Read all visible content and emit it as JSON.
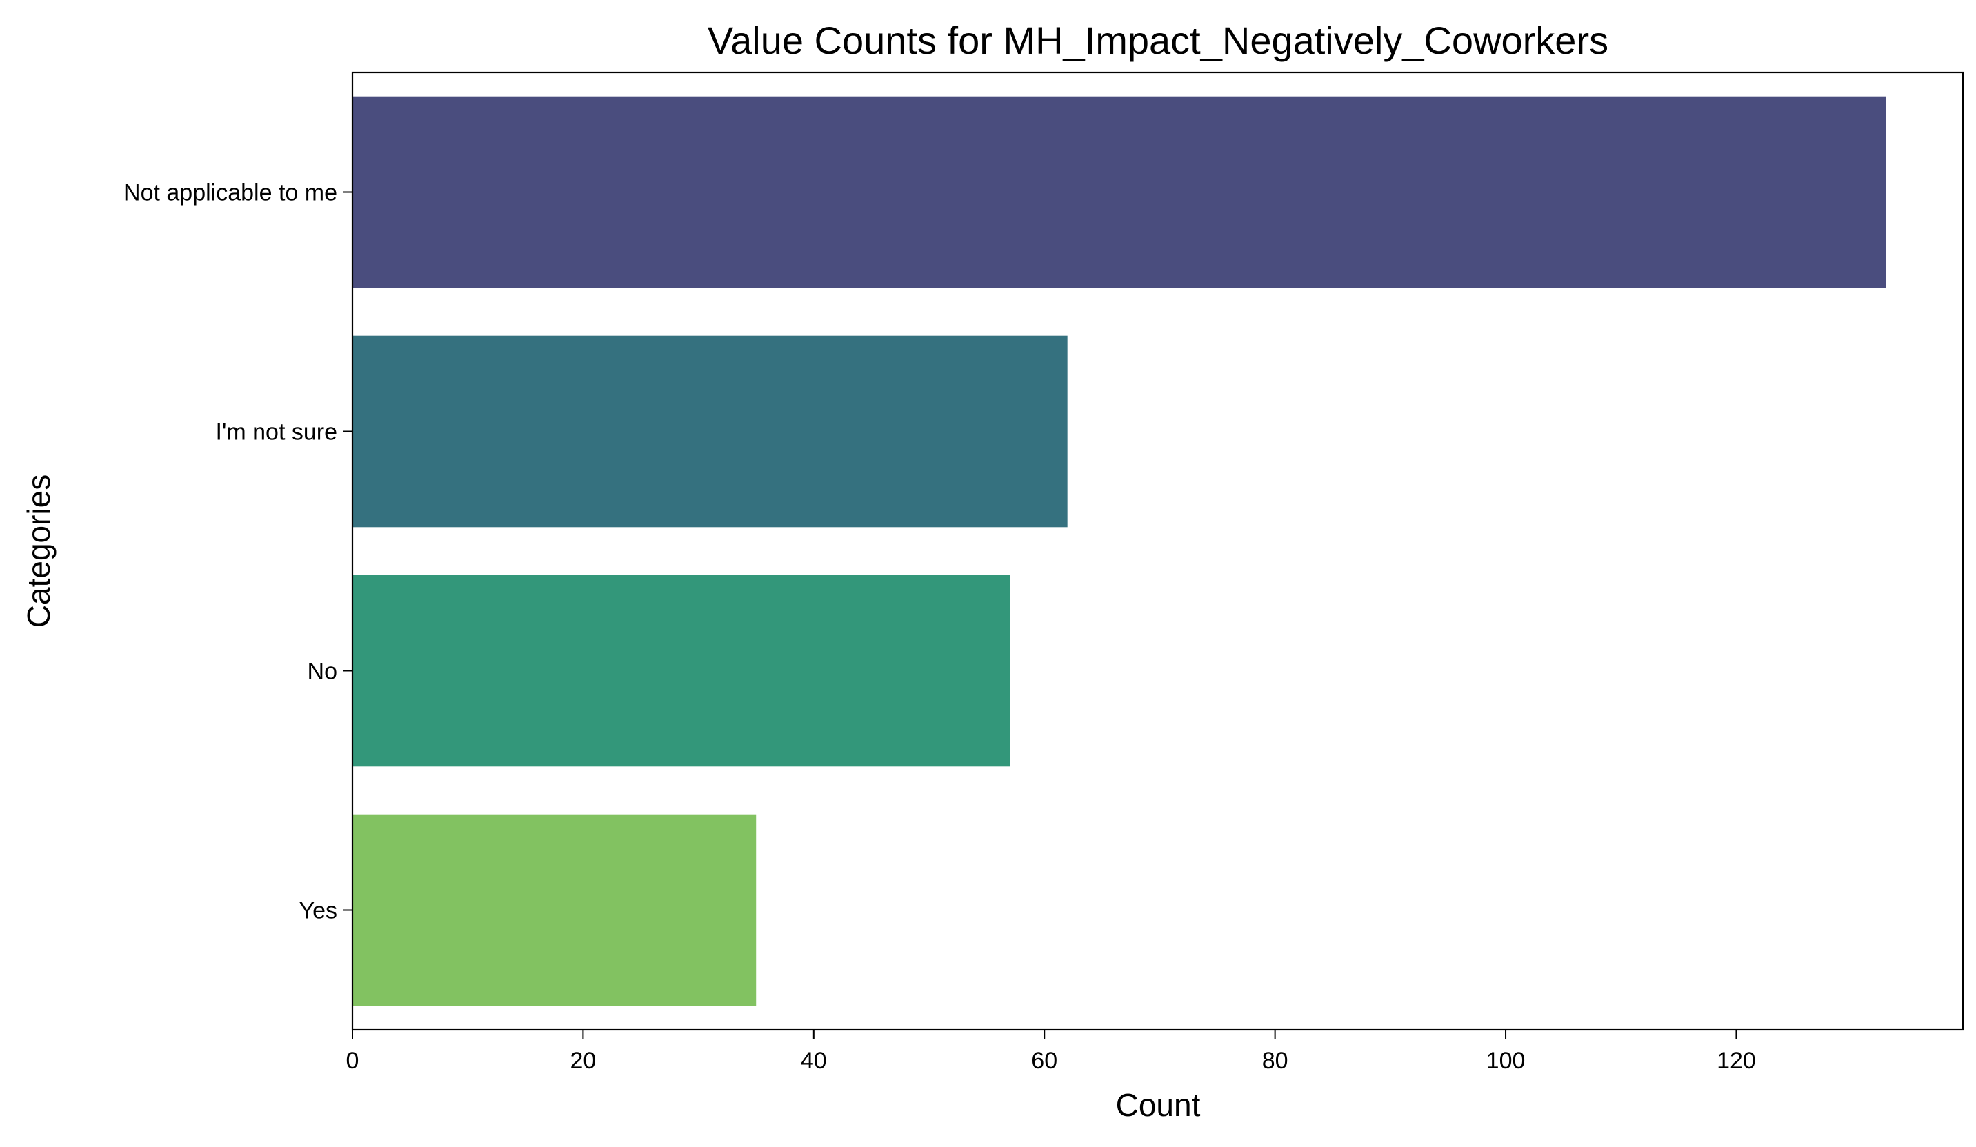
{
  "chart_data": {
    "type": "bar",
    "orientation": "horizontal",
    "title": "Value Counts for MH_Impact_Negatively_Coworkers",
    "xlabel": "Count",
    "ylabel": "Categories",
    "categories": [
      "Not applicable to me",
      "I'm not sure",
      "No",
      "Yes"
    ],
    "values": [
      133,
      62,
      57,
      35
    ],
    "colors": [
      "#4a4d7e",
      "#35717f",
      "#33977a",
      "#82c261"
    ],
    "xlim": [
      0,
      139.65
    ],
    "xticks": [
      0,
      20,
      40,
      60,
      80,
      100,
      120
    ],
    "grid": false,
    "legend": "none"
  }
}
